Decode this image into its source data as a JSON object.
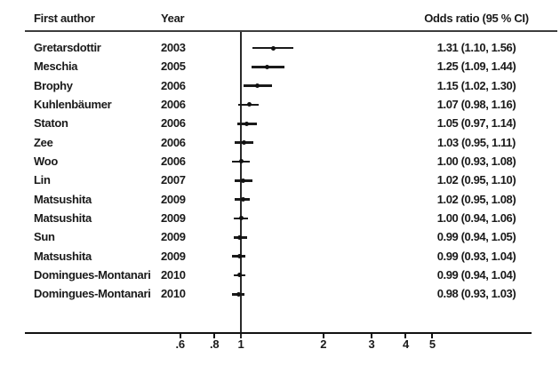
{
  "header": {
    "first_author": "First author",
    "year": "Year",
    "odds_ratio": "Odds ratio (95 % CI)"
  },
  "colors": {
    "text": "#1a1a1a",
    "line": "#111111",
    "header_rule": "#3d3d3d"
  },
  "chart_data": {
    "type": "forest",
    "x_scale": "log10",
    "x_axis_ticks": [
      0.6,
      0.8,
      1,
      2,
      3,
      4,
      5
    ],
    "x_axis_tick_labels": [
      ".6",
      ".8",
      "1",
      "2",
      "3",
      "4",
      "5"
    ],
    "reference_value": 1,
    "xlim": [
      0.45,
      6.5
    ],
    "columns": [
      "First author",
      "Year",
      "Odds ratio (95 % CI)"
    ],
    "studies": [
      {
        "author": "Gretarsdottir",
        "year": "2003",
        "or": 1.31,
        "ci_low": 1.1,
        "ci_high": 1.56,
        "label": "1.31 (1.10, 1.56)"
      },
      {
        "author": "Meschia",
        "year": "2005",
        "or": 1.25,
        "ci_low": 1.09,
        "ci_high": 1.44,
        "label": "1.25 (1.09, 1.44)"
      },
      {
        "author": "Brophy",
        "year": "2006",
        "or": 1.15,
        "ci_low": 1.02,
        "ci_high": 1.3,
        "label": "1.15 (1.02, 1.30)"
      },
      {
        "author": "Kuhlenbäumer",
        "year": "2006",
        "or": 1.07,
        "ci_low": 0.98,
        "ci_high": 1.16,
        "label": "1.07 (0.98, 1.16)"
      },
      {
        "author": "Staton",
        "year": "2006",
        "or": 1.05,
        "ci_low": 0.97,
        "ci_high": 1.14,
        "label": "1.05 (0.97, 1.14)"
      },
      {
        "author": "Zee",
        "year": "2006",
        "or": 1.03,
        "ci_low": 0.95,
        "ci_high": 1.11,
        "label": "1.03 (0.95, 1.11)"
      },
      {
        "author": "Woo",
        "year": "2006",
        "or": 1.0,
        "ci_low": 0.93,
        "ci_high": 1.08,
        "label": "1.00 (0.93, 1.08)"
      },
      {
        "author": "Lin",
        "year": "2007",
        "or": 1.02,
        "ci_low": 0.95,
        "ci_high": 1.1,
        "label": "1.02 (0.95, 1.10)"
      },
      {
        "author": "Matsushita",
        "year": "2009",
        "or": 1.02,
        "ci_low": 0.95,
        "ci_high": 1.08,
        "label": "1.02 (0.95, 1.08)"
      },
      {
        "author": "Matsushita",
        "year": "2009",
        "or": 1.0,
        "ci_low": 0.94,
        "ci_high": 1.06,
        "label": "1.00 (0.94, 1.06)"
      },
      {
        "author": "Sun",
        "year": "2009",
        "or": 0.99,
        "ci_low": 0.94,
        "ci_high": 1.05,
        "label": "0.99 (0.94, 1.05)"
      },
      {
        "author": "Matsushita",
        "year": "2009",
        "or": 0.99,
        "ci_low": 0.93,
        "ci_high": 1.04,
        "label": "0.99 (0.93, 1.04)"
      },
      {
        "author": "Domingues-Montanari",
        "year": "2010",
        "or": 0.99,
        "ci_low": 0.94,
        "ci_high": 1.04,
        "label": "0.99 (0.94, 1.04)"
      },
      {
        "author": "Domingues-Montanari",
        "year": "2010",
        "or": 0.98,
        "ci_low": 0.93,
        "ci_high": 1.03,
        "label": "0.98 (0.93, 1.03)"
      }
    ]
  }
}
